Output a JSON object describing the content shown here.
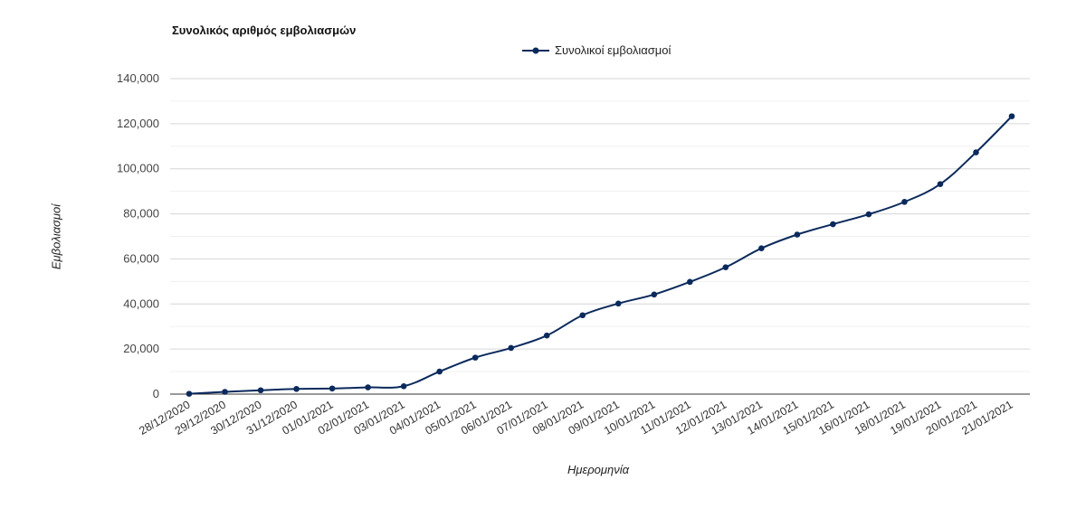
{
  "chart_data": {
    "type": "line",
    "title": "Συνολικός αριθμός εμβολιασμών",
    "xlabel": "Ημερομηνία",
    "ylabel": "Εμβολιασμοί",
    "legend_position": "top-center",
    "ylim": [
      0,
      140000
    ],
    "y_ticks": [
      0,
      20000,
      40000,
      60000,
      80000,
      100000,
      120000,
      140000
    ],
    "y_tick_labels": [
      "0",
      "20,000",
      "40,000",
      "60,000",
      "80,000",
      "100,000",
      "120,000",
      "140,000"
    ],
    "grid": true,
    "categories": [
      "28/12/2020",
      "29/12/2020",
      "30/12/2020",
      "31/12/2020",
      "01/01/2021",
      "02/01/2021",
      "03/01/2021",
      "04/01/2021",
      "05/01/2021",
      "06/01/2021",
      "07/01/2021",
      "08/01/2021",
      "09/01/2021",
      "10/01/2021",
      "11/01/2021",
      "12/01/2021",
      "13/01/2021",
      "14/01/2021",
      "15/01/2021",
      "16/01/2021",
      "18/01/2021",
      "19/01/2021",
      "20/01/2021",
      "21/01/2021"
    ],
    "series": [
      {
        "name": "Συνολικοί εμβολιασμοί",
        "color": "#0b2a5c",
        "values": [
          150,
          1000,
          1700,
          2300,
          2500,
          3000,
          3500,
          10000,
          16200,
          20500,
          26000,
          35000,
          40200,
          44200,
          49800,
          56300,
          64700,
          70800,
          75400,
          79800,
          85300,
          93200,
          107300,
          123300
        ]
      }
    ]
  }
}
